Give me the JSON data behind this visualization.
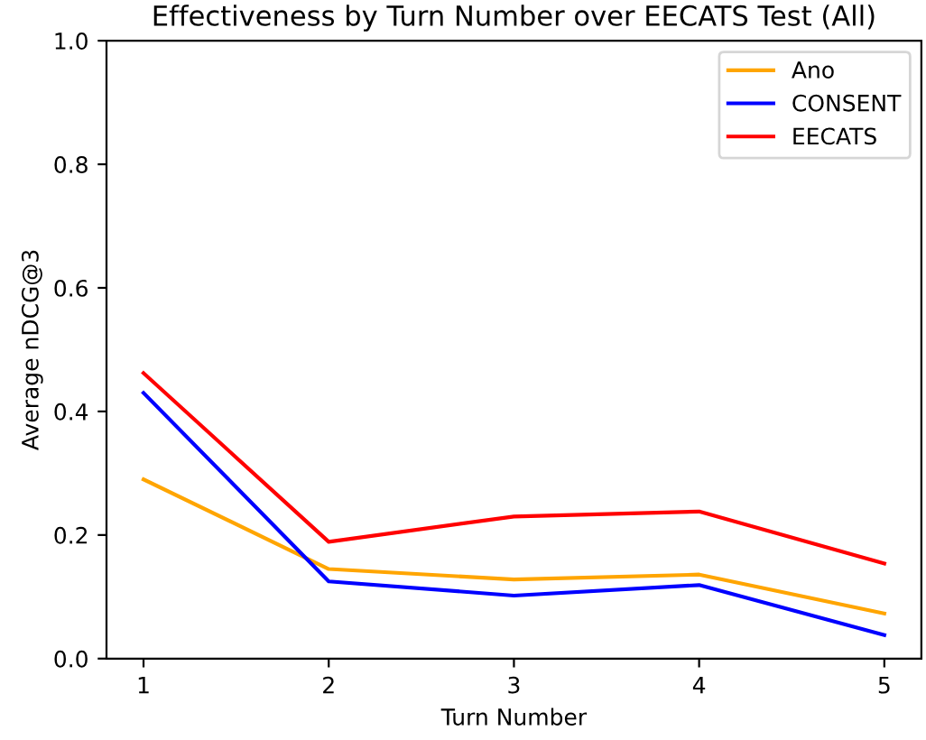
{
  "chart_data": {
    "type": "line",
    "title": "Effectiveness by Turn Number over EECATS Test (All)",
    "xlabel": "Turn Number",
    "ylabel": "Average nDCG@3",
    "x": [
      1,
      2,
      3,
      4,
      5
    ],
    "series": [
      {
        "name": "Ano",
        "color": "#ffa500",
        "values": [
          0.29,
          0.145,
          0.128,
          0.136,
          0.073
        ]
      },
      {
        "name": "CONSENT",
        "color": "#0000ff",
        "values": [
          0.43,
          0.125,
          0.102,
          0.119,
          0.038
        ]
      },
      {
        "name": "EECATS",
        "color": "#ff0000",
        "values": [
          0.462,
          0.189,
          0.23,
          0.238,
          0.154
        ]
      }
    ],
    "xlim": [
      0.8,
      5.2
    ],
    "ylim": [
      0,
      1
    ],
    "xticks": [
      1,
      2,
      3,
      4,
      5
    ],
    "yticks": [
      {
        "value": 0,
        "label": "0.0"
      },
      {
        "value": 0.2,
        "label": "0.2"
      },
      {
        "value": 0.4,
        "label": "0.4"
      },
      {
        "value": 0.6,
        "label": "0.6"
      },
      {
        "value": 0.8,
        "label": "0.8"
      },
      {
        "value": 1,
        "label": "1.0"
      }
    ],
    "legend": "top right",
    "grid": false
  }
}
